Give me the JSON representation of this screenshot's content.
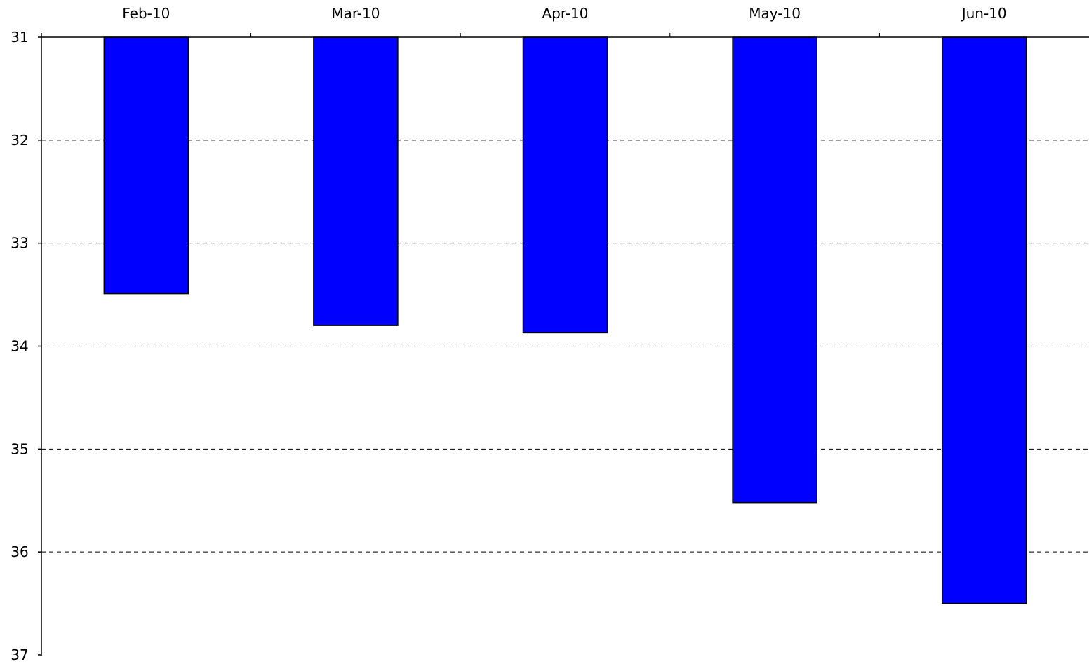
{
  "chart_data": {
    "type": "bar",
    "orientation": "vertical",
    "y_axis_inverted": true,
    "x_axis_position": "top",
    "categories": [
      "Feb-10",
      "Mar-10",
      "Apr-10",
      "May-10",
      "Jun-10"
    ],
    "values": [
      33.49,
      33.8,
      33.87,
      35.52,
      36.5
    ],
    "title": "",
    "xlabel": "",
    "ylabel": "",
    "ylim": [
      31,
      37
    ],
    "yticks": [
      "31",
      "32",
      "33",
      "34",
      "35",
      "36",
      "37"
    ],
    "grid": "horizontal dashed",
    "legend": "none",
    "bar_color": "#0000ff",
    "bar_outline_color": "#000000"
  }
}
